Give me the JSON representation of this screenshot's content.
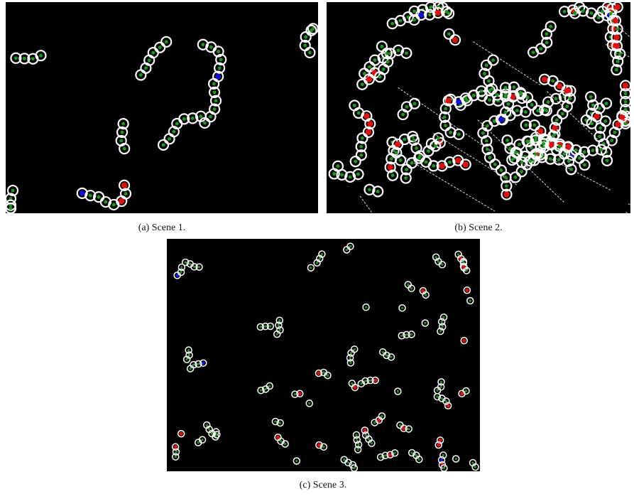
{
  "figures": [
    {
      "caption": "(a) Scene 1."
    },
    {
      "caption": "(b) Scene 2."
    },
    {
      "caption": "(c) Scene 3."
    }
  ]
}
